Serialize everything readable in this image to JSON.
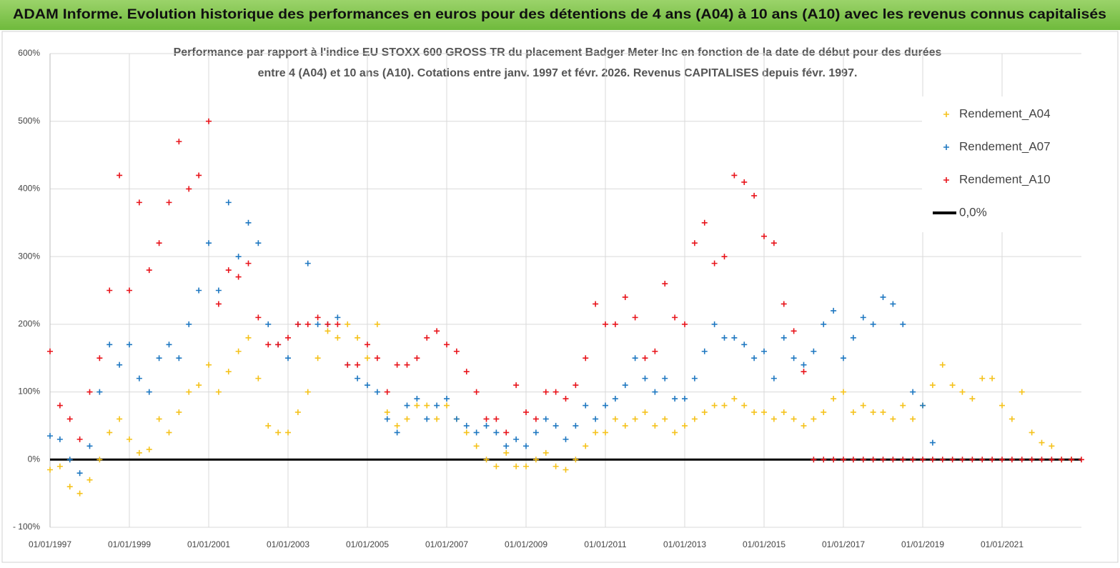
{
  "chart_data": {
    "type": "scatter",
    "title": "ADAM Informe. Evolution historique des performances en euros pour des détentions de 4 ans (A04) à 10 ans (A10) avec les revenus connus capitalisés",
    "subtitle": [
      "Performance par rapport à l'indice EU STOXX 600 GROSS TR  du placement Badger Meter Inc en fonction de la date de début pour des durées",
      "entre 4 (A04) et 10 ans (A10). Cotations entre janv. 1997 et févr. 2026. Revenus CAPITALISES depuis févr. 1997."
    ],
    "x": [
      1997,
      1997.25,
      1997.5,
      1997.75,
      1998,
      1998.25,
      1998.5,
      1998.75,
      1999,
      1999.25,
      1999.5,
      1999.75,
      2000,
      2000.25,
      2000.5,
      2000.75,
      2001,
      2001.25,
      2001.5,
      2001.75,
      2002,
      2002.25,
      2002.5,
      2002.75,
      2003,
      2003.25,
      2003.5,
      2003.75,
      2004,
      2004.25,
      2004.5,
      2004.75,
      2005,
      2005.25,
      2005.5,
      2005.75,
      2006,
      2006.25,
      2006.5,
      2006.75,
      2007,
      2007.25,
      2007.5,
      2007.75,
      2008,
      2008.25,
      2008.5,
      2008.75,
      2009,
      2009.25,
      2009.5,
      2009.75,
      2010,
      2010.25,
      2010.5,
      2010.75,
      2011,
      2011.25,
      2011.5,
      2011.75,
      2012,
      2012.25,
      2012.5,
      2012.75,
      2013,
      2013.25,
      2013.5,
      2013.75,
      2014,
      2014.25,
      2014.5,
      2014.75,
      2015,
      2015.25,
      2015.5,
      2015.75,
      2016,
      2016.25,
      2016.5,
      2016.75,
      2017,
      2017.25,
      2017.5,
      2017.75,
      2018,
      2018.25,
      2018.5,
      2018.75,
      2019,
      2019.25,
      2019.5,
      2019.75,
      2020,
      2020.25,
      2020.5,
      2020.75,
      2021,
      2021.25,
      2021.5,
      2021.75,
      2022,
      2022.25,
      2022.5,
      2022.75,
      2023
    ],
    "series": [
      {
        "name": "Rendement_A04",
        "color": "#f5c21b",
        "values": [
          -15,
          -10,
          -40,
          -50,
          -30,
          0,
          40,
          60,
          30,
          10,
          15,
          60,
          40,
          70,
          100,
          110,
          140,
          100,
          130,
          160,
          180,
          120,
          50,
          40,
          40,
          70,
          100,
          150,
          190,
          180,
          200,
          180,
          150,
          200,
          70,
          50,
          60,
          80,
          80,
          60,
          80,
          60,
          40,
          20,
          0,
          -10,
          10,
          -10,
          -10,
          0,
          10,
          -10,
          -15,
          0,
          20,
          40,
          40,
          60,
          50,
          60,
          70,
          50,
          60,
          40,
          50,
          60,
          70,
          80,
          80,
          90,
          80,
          70,
          70,
          60,
          70,
          60,
          50,
          60,
          70,
          90,
          100,
          70,
          80,
          70,
          70,
          60,
          80,
          60,
          80,
          110,
          140,
          110,
          100,
          90,
          120,
          120,
          80,
          60,
          100,
          40,
          25,
          20,
          0,
          0,
          null
        ]
      },
      {
        "name": "Rendement_A07",
        "color": "#1f78c1",
        "values": [
          35,
          30,
          0,
          -20,
          20,
          100,
          170,
          140,
          170,
          120,
          100,
          150,
          170,
          150,
          200,
          250,
          320,
          250,
          380,
          300,
          350,
          320,
          200,
          170,
          150,
          200,
          290,
          200,
          200,
          210,
          140,
          120,
          110,
          100,
          60,
          40,
          80,
          90,
          60,
          80,
          90,
          60,
          50,
          40,
          50,
          40,
          20,
          30,
          20,
          40,
          60,
          50,
          30,
          50,
          80,
          60,
          80,
          90,
          110,
          150,
          120,
          100,
          120,
          90,
          90,
          120,
          160,
          200,
          180,
          180,
          170,
          150,
          160,
          120,
          180,
          150,
          140,
          160,
          200,
          220,
          150,
          180,
          210,
          200,
          240,
          230,
          200,
          100,
          80,
          25,
          null,
          null,
          null,
          null,
          null,
          null,
          null,
          null,
          null,
          null,
          null,
          null,
          null,
          null,
          null
        ]
      },
      {
        "name": "Rendement_A10",
        "color": "#e8141b",
        "values": [
          160,
          80,
          60,
          30,
          100,
          150,
          250,
          420,
          250,
          380,
          280,
          320,
          380,
          470,
          400,
          420,
          500,
          230,
          280,
          270,
          290,
          210,
          170,
          170,
          180,
          200,
          200,
          210,
          200,
          200,
          140,
          140,
          170,
          150,
          100,
          140,
          140,
          150,
          180,
          190,
          170,
          160,
          130,
          100,
          60,
          60,
          40,
          110,
          70,
          60,
          100,
          100,
          90,
          110,
          150,
          230,
          200,
          200,
          240,
          210,
          150,
          160,
          260,
          210,
          200,
          320,
          350,
          290,
          300,
          420,
          410,
          390,
          330,
          320,
          230,
          190,
          130,
          0,
          0,
          0,
          0,
          0,
          0,
          0,
          0,
          0,
          0,
          0,
          0,
          0,
          0,
          0,
          0,
          0,
          0,
          0,
          0,
          0,
          0,
          0,
          0,
          0,
          0,
          0,
          0
        ]
      }
    ],
    "reference_line": {
      "name": "0,0%",
      "value": 0,
      "color": "#000000"
    },
    "xlim": [
      1997,
      2023
    ],
    "xticks": [
      {
        "value": 1997,
        "label": "01/01/1997"
      },
      {
        "value": 1999,
        "label": "01/01/1999"
      },
      {
        "value": 2001,
        "label": "01/01/2001"
      },
      {
        "value": 2003,
        "label": "01/01/2003"
      },
      {
        "value": 2005,
        "label": "01/01/2005"
      },
      {
        "value": 2007,
        "label": "01/01/2007"
      },
      {
        "value": 2009,
        "label": "01/01/2009"
      },
      {
        "value": 2011,
        "label": "01/01/2011"
      },
      {
        "value": 2013,
        "label": "01/01/2013"
      },
      {
        "value": 2015,
        "label": "01/01/2015"
      },
      {
        "value": 2017,
        "label": "01/01/2017"
      },
      {
        "value": 2019,
        "label": "01/01/2019"
      },
      {
        "value": 2021,
        "label": "01/01/2021"
      }
    ],
    "ylim": [
      -100,
      600
    ],
    "yticks": [
      {
        "value": -100,
        "label": "- 100%"
      },
      {
        "value": 0,
        "label": "0%"
      },
      {
        "value": 100,
        "label": "100%"
      },
      {
        "value": 200,
        "label": "200%"
      },
      {
        "value": 300,
        "label": "300%"
      },
      {
        "value": 400,
        "label": "400%"
      },
      {
        "value": 500,
        "label": "500%"
      },
      {
        "value": 600,
        "label": "600%"
      }
    ],
    "grid": true,
    "legend": "right"
  }
}
